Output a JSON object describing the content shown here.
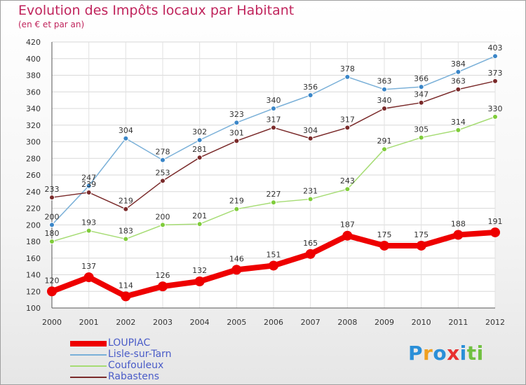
{
  "chart_data": {
    "type": "line",
    "title": "Evolution des Impôts locaux par Habitant",
    "subtitle": "(en € et par an)",
    "xlabel": "",
    "ylabel": "",
    "ylim": [
      100,
      420
    ],
    "ytick_step": 20,
    "grid": true,
    "legend_position": "bottom-left",
    "categories": [
      "2000",
      "2001",
      "2002",
      "2003",
      "2004",
      "2005",
      "2006",
      "2007",
      "2008",
      "2009",
      "2010",
      "2011",
      "2012"
    ],
    "series": [
      {
        "name": "LOUPIAC",
        "color": "#ee0000",
        "marker": "#ee0000",
        "values": [
          120,
          137,
          114,
          126,
          132,
          146,
          151,
          165,
          187,
          175,
          175,
          188,
          191
        ]
      },
      {
        "name": "Lisle-sur-Tarn",
        "color": "#7ab0d8",
        "marker": "#3a86c8",
        "values": [
          200,
          247,
          304,
          278,
          302,
          323,
          340,
          356,
          378,
          363,
          366,
          384,
          403
        ]
      },
      {
        "name": "Coufouleux",
        "color": "#a6dc74",
        "marker": "#7fcc3a",
        "values": [
          180,
          193,
          183,
          200,
          201,
          219,
          227,
          231,
          243,
          291,
          305,
          314,
          330
        ]
      },
      {
        "name": "Rabastens",
        "color": "#7a2a2a",
        "marker": "#7a2a2a",
        "values": [
          233,
          239,
          219,
          253,
          281,
          301,
          317,
          304,
          317,
          340,
          347,
          363,
          373
        ]
      }
    ]
  },
  "logo": {
    "letters": [
      "P",
      "r",
      "o",
      "x",
      "i",
      "t",
      "i"
    ],
    "colors": [
      "#2a8fd8",
      "#f0a020",
      "#2a8fd8",
      "#e83030",
      "#2a8fd8",
      "#70c040",
      "#70c040"
    ]
  }
}
